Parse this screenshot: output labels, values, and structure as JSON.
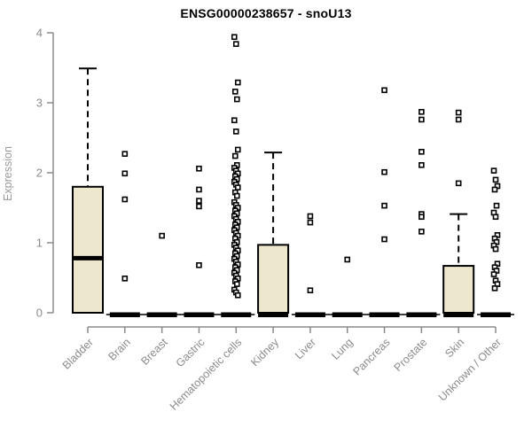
{
  "chart_data": {
    "type": "boxplot",
    "title": "ENSG00000238657 - snoU13",
    "ylabel": "Expression",
    "xlabel": "",
    "ylim": [
      0,
      4
    ],
    "yticks": [
      0,
      1,
      2,
      3,
      4
    ],
    "grid": false,
    "legend": "none",
    "colors": {
      "box_fill": "#EDE8CD",
      "box_stroke": "#000000",
      "median": "#000000",
      "axis": "#8b8b8b",
      "tick_label": "#8b8b8b",
      "axis_title": "#9a9a9a",
      "title_color": "#000000",
      "background": "#ffffff"
    },
    "boxes": [
      {
        "label": "Bladder",
        "whisker_low": 0,
        "q1": 0,
        "median": 0.78,
        "q3": 1.8,
        "whisker_high": 3.49,
        "outliers": []
      },
      {
        "label": "Brain",
        "whisker_low": 0,
        "q1": 0,
        "median": 0,
        "q3": 0,
        "whisker_high": 0,
        "outliers": [
          2.27,
          1.99,
          1.62,
          0.49
        ]
      },
      {
        "label": "Breast",
        "whisker_low": 0,
        "q1": 0,
        "median": 0,
        "q3": 0,
        "whisker_high": 0,
        "outliers": [
          1.1
        ]
      },
      {
        "label": "Gastric",
        "whisker_low": 0,
        "q1": 0,
        "median": 0,
        "q3": 0,
        "whisker_high": 0,
        "outliers": [
          2.06,
          1.76,
          1.6,
          1.52,
          0.68
        ]
      },
      {
        "label": "Hematopoietic cells",
        "whisker_low": 0,
        "q1": 0,
        "median": 0,
        "q3": 0,
        "whisker_high": 0,
        "outliers": [
          3.94,
          3.84,
          3.29,
          3.16,
          3.05,
          2.75,
          2.59,
          2.33,
          2.24,
          2.11,
          2.07,
          2.03,
          1.99,
          1.95,
          1.91,
          1.87,
          1.83,
          1.79,
          1.72,
          1.67,
          1.58,
          1.54,
          1.5,
          1.46,
          1.42,
          1.38,
          1.34,
          1.3,
          1.26,
          1.22,
          1.18,
          1.14,
          1.1,
          1.06,
          1.01,
          0.97,
          0.93,
          0.89,
          0.85,
          0.81,
          0.77,
          0.73,
          0.69,
          0.65,
          0.61,
          0.57,
          0.53,
          0.49,
          0.45,
          0.41,
          0.33,
          0.29,
          0.25
        ]
      },
      {
        "label": "Kidney",
        "whisker_low": 0,
        "q1": 0,
        "median": 0,
        "q3": 0.97,
        "whisker_high": 2.29,
        "outliers": []
      },
      {
        "label": "Liver",
        "whisker_low": 0,
        "q1": 0,
        "median": 0,
        "q3": 0,
        "whisker_high": 0,
        "outliers": [
          1.38,
          1.29,
          0.32
        ]
      },
      {
        "label": "Lung",
        "whisker_low": 0,
        "q1": 0,
        "median": 0,
        "q3": 0,
        "whisker_high": 0,
        "outliers": [
          0.76
        ]
      },
      {
        "label": "Pancreas",
        "whisker_low": 0,
        "q1": 0,
        "median": 0,
        "q3": 0,
        "whisker_high": 0,
        "outliers": [
          3.18,
          2.01,
          1.53,
          1.05
        ]
      },
      {
        "label": "Prostate",
        "whisker_low": 0,
        "q1": 0,
        "median": 0,
        "q3": 0,
        "whisker_high": 0,
        "outliers": [
          2.87,
          2.76,
          2.3,
          2.11,
          1.41,
          1.37,
          1.16
        ]
      },
      {
        "label": "Skin",
        "whisker_low": 0,
        "q1": 0,
        "median": 0,
        "q3": 0.67,
        "whisker_high": 1.41,
        "outliers": [
          2.86,
          2.76,
          1.85
        ]
      },
      {
        "label": "Unknown / Other",
        "whisker_low": 0,
        "q1": 0,
        "median": 0,
        "q3": 0,
        "whisker_high": 0,
        "outliers": [
          2.03,
          1.9,
          1.81,
          1.76,
          1.53,
          1.43,
          1.37,
          1.11,
          1.06,
          1.01,
          0.96,
          0.91,
          0.7,
          0.65,
          0.6,
          0.55,
          0.46,
          0.41,
          0.35
        ]
      }
    ]
  }
}
